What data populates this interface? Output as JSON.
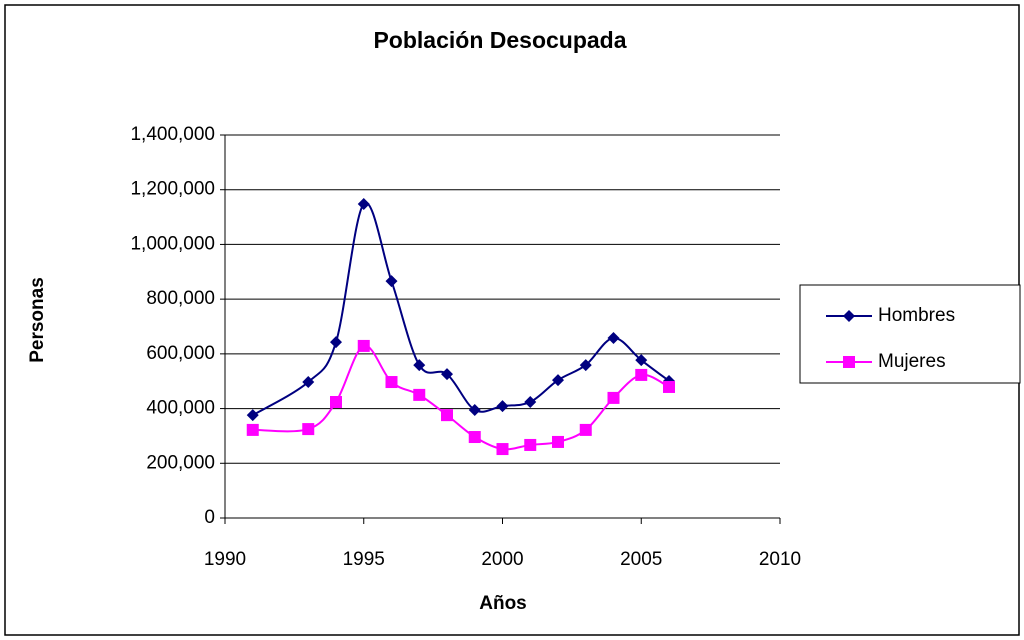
{
  "chart_data": {
    "type": "line",
    "title": "Población Desocupada",
    "x_label": "Años",
    "y_label": "Personas",
    "x": [
      1991,
      1993,
      1994,
      1995,
      1996,
      1997,
      1998,
      1999,
      2000,
      2001,
      2002,
      2003,
      2004,
      2005,
      2006
    ],
    "series": [
      {
        "name": "Hombres",
        "color": "#000080",
        "marker": "diamond",
        "values": [
          376000,
          497000,
          643000,
          1148000,
          866000,
          559000,
          526000,
          395000,
          409000,
          424000,
          504000,
          559000,
          658000,
          577000,
          501000
        ]
      },
      {
        "name": "Mujeres",
        "color": "#ff00ff",
        "marker": "square",
        "values": [
          322000,
          325000,
          424000,
          629000,
          497000,
          450000,
          376000,
          296000,
          252000,
          267000,
          278000,
          322000,
          439000,
          523000,
          479000
        ]
      }
    ],
    "xlim": [
      1990,
      2010
    ],
    "xticks": [
      1990,
      1995,
      2000,
      2005,
      2010
    ],
    "ylim": [
      0,
      1400000
    ],
    "yticks": [
      0,
      {
        "value": 200000,
        "label": "200,000"
      },
      {
        "value": 400000,
        "label": "400,000"
      },
      {
        "value": 600000,
        "label": "600,000"
      },
      {
        "value": 800000,
        "label": "800,000"
      },
      {
        "value": 1000000,
        "label": "1,000,000"
      },
      {
        "value": 1200000,
        "label": "1,200,000"
      },
      {
        "value": 1400000,
        "label": "1,400,000"
      }
    ],
    "grid": true,
    "smooth": true,
    "legend": "right"
  }
}
